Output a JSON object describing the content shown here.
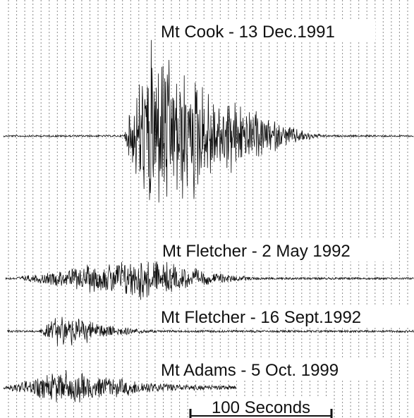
{
  "traces": [
    {
      "label": "Mt Cook - 13 Dec.1991"
    },
    {
      "label": "Mt Fletcher - 2 May 1992"
    },
    {
      "label": "Mt Fletcher - 16 Sept.1992"
    },
    {
      "label": "Mt Adams -  5 Oct. 1999"
    }
  ],
  "scale_bar": {
    "label": "100 Seconds"
  }
}
